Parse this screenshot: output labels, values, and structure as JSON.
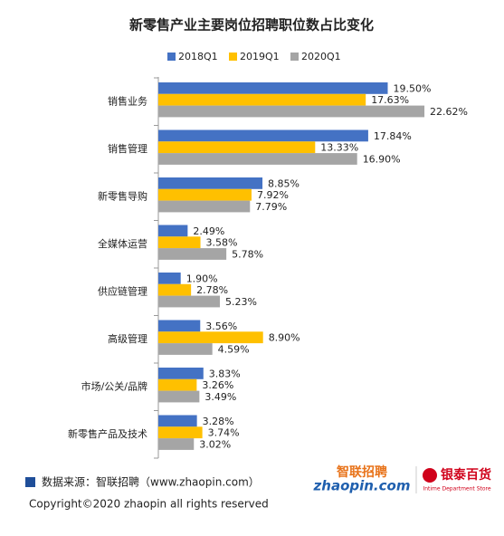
{
  "chart_data": {
    "type": "hbar",
    "title": "新零售产业主要岗位招聘职位数占比变化",
    "categories": [
      "销售业务",
      "销售管理",
      "新零售导购",
      "全媒体运营",
      "供应链管理",
      "高级管理",
      "市场/公关/品牌",
      "新零售产品及技术"
    ],
    "series": [
      {
        "name": "2018Q1",
        "color": "#4472c4",
        "values": [
          19.5,
          17.84,
          8.85,
          2.49,
          1.9,
          3.56,
          3.83,
          3.28
        ],
        "value_labels": [
          "19.50%",
          "17.84%",
          "8.85%",
          "2.49%",
          "1.90%",
          "3.56%",
          "3.83%",
          "3.28%"
        ]
      },
      {
        "name": "2019Q1",
        "color": "#ffc000",
        "values": [
          17.63,
          13.33,
          7.92,
          3.58,
          2.78,
          8.9,
          3.26,
          3.74
        ],
        "value_labels": [
          "17.63%",
          "13.33%",
          "7.92%",
          "3.58%",
          "2.78%",
          "8.90%",
          "3.26%",
          "3.74%"
        ]
      },
      {
        "name": "2020Q1",
        "color": "#a5a5a5",
        "values": [
          22.62,
          16.9,
          7.79,
          5.78,
          5.23,
          4.59,
          3.49,
          3.02
        ],
        "value_labels": [
          "22.62%",
          "16.90%",
          "7.79%",
          "5.78%",
          "5.23%",
          "4.59%",
          "3.49%",
          "3.02%"
        ]
      }
    ],
    "legend": "top"
  },
  "footer": {
    "source": "数据来源：智联招聘（www.zhaopin.com）",
    "copyright": "Copyright©2020 zhaopin all rights reserved",
    "logo_zhaopin": "智联招聘",
    "logo_zhaopin_url": "zhaopin.com",
    "logo_intime": "银泰百货",
    "logo_intime_en": "Intime Department Store"
  }
}
